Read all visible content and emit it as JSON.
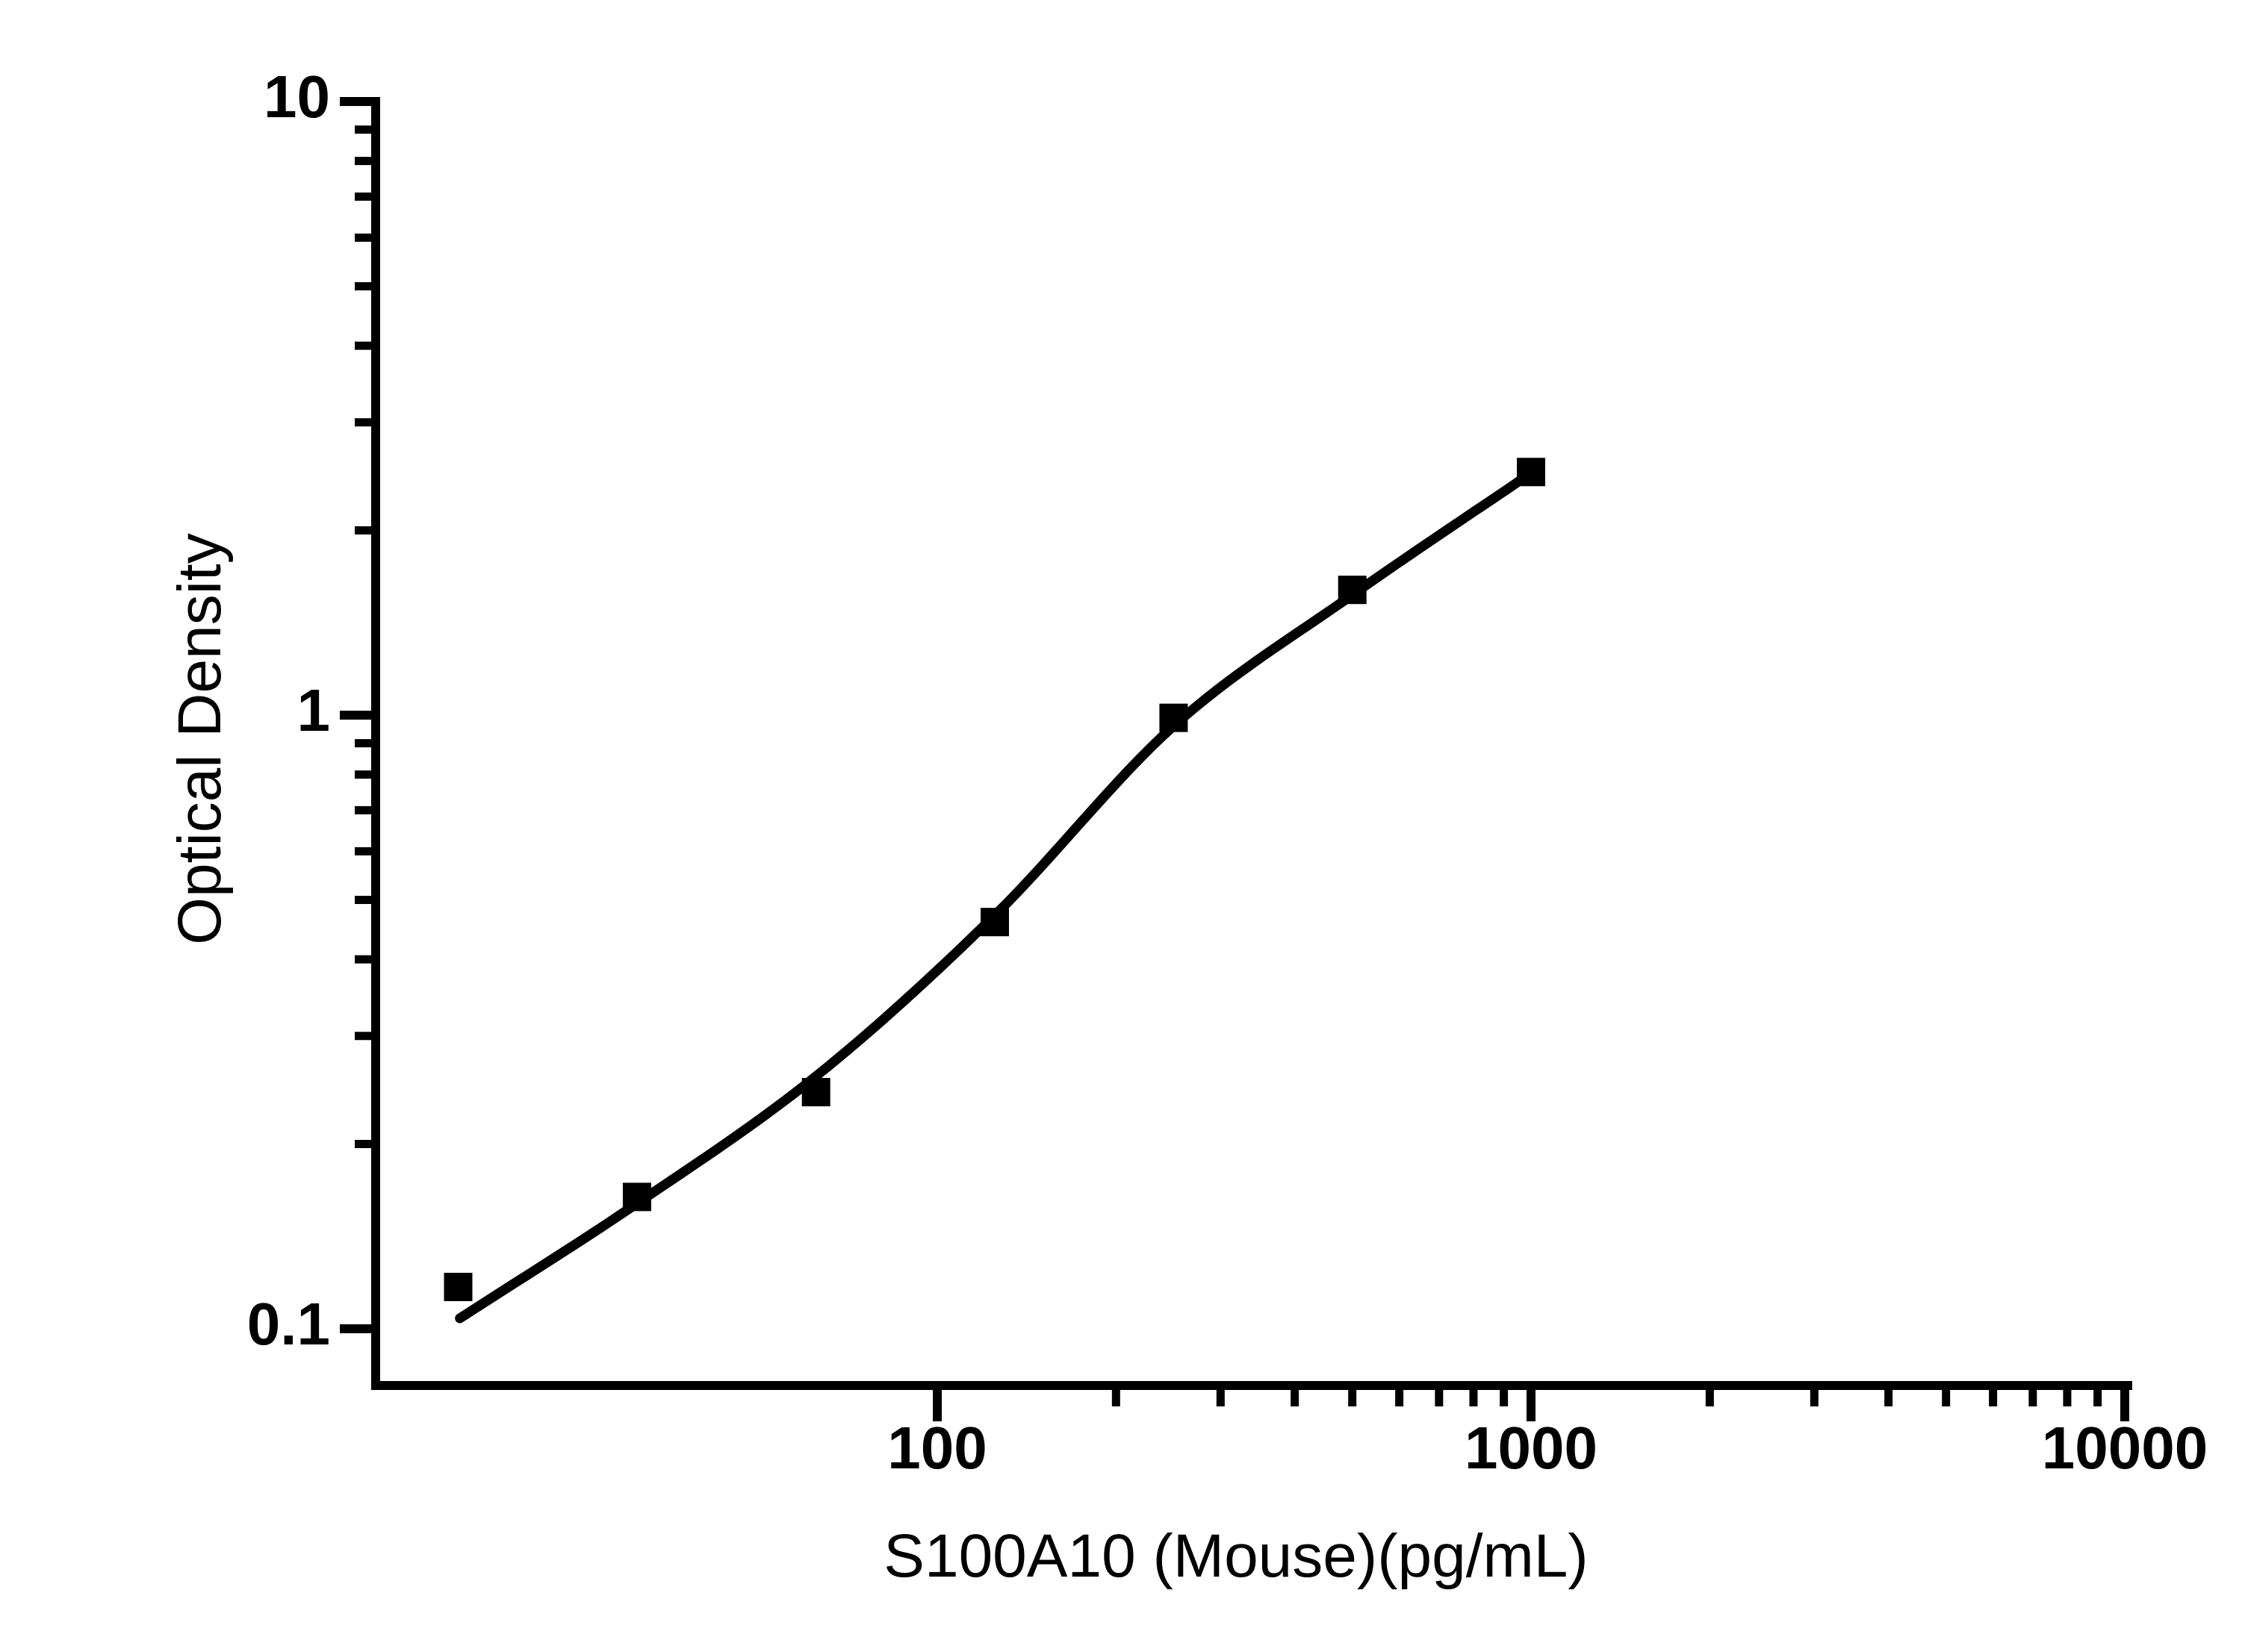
{
  "figure": {
    "background_color": "#ffffff",
    "foreground_color": "#000000"
  },
  "chart_data": {
    "type": "scatter",
    "title": "",
    "xlabel": "S100A10 (Mouse)(pg/mL)",
    "ylabel": "Optical Density",
    "x_scale": "log",
    "y_scale": "log",
    "xlim": [
      11.3,
      10000
    ],
    "ylim": [
      0.081,
      10
    ],
    "x_ticks": [
      100,
      1000,
      10000
    ],
    "x_tick_labels": [
      "100",
      "1000",
      "10000"
    ],
    "y_ticks": [
      10,
      1,
      0.1
    ],
    "y_tick_labels": [
      "10",
      "1",
      "0.1"
    ],
    "grid": false,
    "legend": false,
    "marker": "filled-square",
    "marker_color": "#000000",
    "line_color": "#000000",
    "series": [
      {
        "name": "standard-curve-points",
        "points": [
          {
            "x": 15.6,
            "y": 0.117
          },
          {
            "x": 31.2,
            "y": 0.164
          },
          {
            "x": 62.5,
            "y": 0.243
          },
          {
            "x": 125,
            "y": 0.46
          },
          {
            "x": 250,
            "y": 0.99
          },
          {
            "x": 500,
            "y": 1.6
          },
          {
            "x": 1000,
            "y": 2.49
          }
        ]
      }
    ],
    "fit_curve": {
      "name": "4pl-fit",
      "anchors": [
        {
          "x": 15.7,
          "y": 0.104
        },
        {
          "x": 31.2,
          "y": 0.16
        },
        {
          "x": 62.5,
          "y": 0.258
        },
        {
          "x": 125,
          "y": 0.472
        },
        {
          "x": 250,
          "y": 0.96
        },
        {
          "x": 500,
          "y": 1.57
        },
        {
          "x": 1000,
          "y": 2.48
        }
      ]
    }
  }
}
